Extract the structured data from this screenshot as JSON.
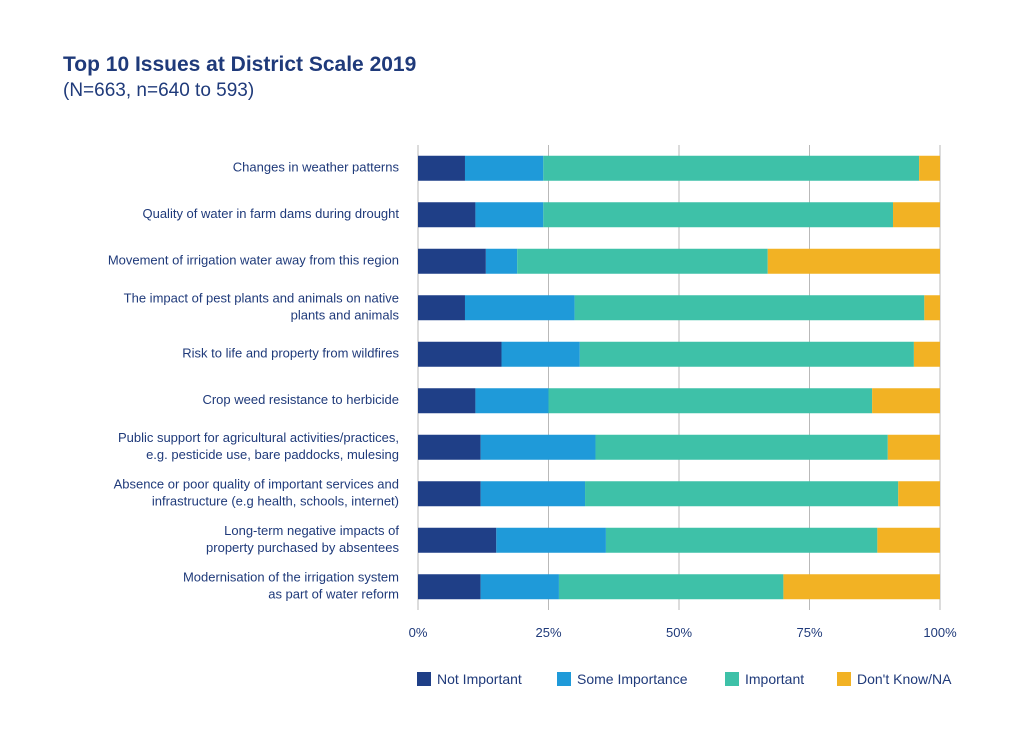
{
  "header": {
    "title": "Top 10 Issues at District Scale 2019",
    "subtitle": "(N=663, n=640 to 593)"
  },
  "chart_data": {
    "type": "bar",
    "orientation": "horizontal",
    "stacked": true,
    "title": "Top 10 Issues at District Scale 2019",
    "subtitle": "(N=663, n=640 to 593)",
    "categories": [
      [
        "Changes in weather patterns"
      ],
      [
        "Quality of water in farm dams during drought"
      ],
      [
        "Movement of irrigation water away from this region"
      ],
      [
        "The impact of pest plants and animals on native",
        "plants and animals"
      ],
      [
        "Risk to life and property from wildfires"
      ],
      [
        "Crop weed resistance to herbicide"
      ],
      [
        "Public support for agricultural activities/practices,",
        "e.g. pesticide use, bare paddocks, mulesing"
      ],
      [
        "Absence or poor quality of important services and",
        "infrastructure (e.g health, schools, internet)"
      ],
      [
        "Long-term negative impacts of",
        "property purchased by absentees"
      ],
      [
        "Modernisation of the irrigation system",
        "as part of water reform"
      ]
    ],
    "series": [
      {
        "name": "Not Important",
        "color": "#1f3f87",
        "values": [
          9,
          11,
          13,
          9,
          16,
          11,
          12,
          12,
          15,
          12
        ]
      },
      {
        "name": "Some Importance",
        "color": "#1f9ad9",
        "values": [
          15,
          13,
          6,
          21,
          15,
          14,
          22,
          20,
          21,
          15
        ]
      },
      {
        "name": "Important",
        "color": "#3ec1a8",
        "values": [
          72,
          67,
          48,
          67,
          64,
          62,
          56,
          60,
          52,
          43
        ]
      },
      {
        "name": "Don't Know/NA",
        "color": "#f2b224",
        "values": [
          4,
          9,
          33,
          3,
          5,
          13,
          10,
          8,
          12,
          30
        ]
      }
    ],
    "xlim": [
      0,
      100
    ],
    "xticks": [
      "0%",
      "25%",
      "50%",
      "75%",
      "100%"
    ],
    "xtick_values": [
      0,
      25,
      50,
      75,
      100
    ],
    "grid": true,
    "legend_position": "bottom"
  }
}
